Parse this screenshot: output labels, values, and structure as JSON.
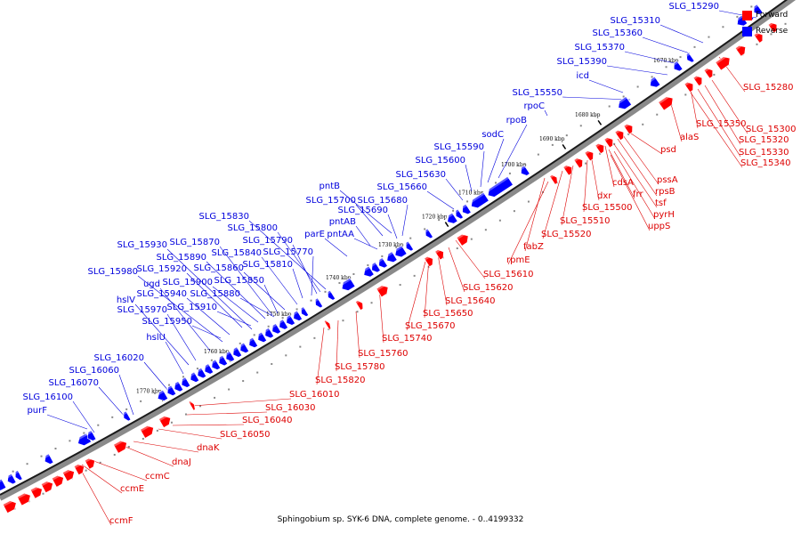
{
  "legend": {
    "forward_label": "Forward",
    "reverse_label": "Reverse",
    "forward_color": "#ff0000",
    "reverse_color": "#0000ff"
  },
  "caption": "Sphingobium sp. SYK-6 DNA, complete genome. - 0..4199332",
  "ticks": [
    "1670 kbp",
    "1680 kbp",
    "1690 kbp",
    "1700 kbp",
    "1710 kbp",
    "1720 kbp",
    "1730 kbp",
    "1740 kbp",
    "1750 kbp",
    "1760 kbp",
    "1770 kbp"
  ],
  "reverse_genes": [
    "SLG_15290",
    "SLG_15310",
    "SLG_15360",
    "SLG_15370",
    "SLG_15390",
    "icd",
    "SLG_15550",
    "rpoC",
    "rpoB",
    "sodC",
    "SLG_15590",
    "SLG_15600",
    "SLG_15630",
    "SLG_15660",
    "pntB",
    "SLG_15700",
    "SLG_15680",
    "SLG_15690",
    "pntAB",
    "parE",
    "pntAA",
    "SLG_15830",
    "SLG_15800",
    "SLG_15790",
    "SLG_15770",
    "SLG_15930",
    "SLG_15870",
    "SLG_15890",
    "SLG_15840",
    "SLG_15980",
    "SLG_15920",
    "SLG_15860",
    "SLG_15810",
    "ugd",
    "SLG_15900",
    "SLG_15850",
    "hslV",
    "SLG_15940",
    "SLG_15880",
    "SLG_15970",
    "SLG_15910",
    "SLG_15950",
    "hslU",
    "SLG_16020",
    "SLG_16060",
    "SLG_16070",
    "SLG_16100",
    "purF"
  ],
  "forward_genes": [
    "SLG_15280",
    "alaS",
    "SLG_15350",
    "SLG_15300",
    "SLG_15320",
    "SLG_15330",
    "SLG_15340",
    "psd",
    "pssA",
    "rpsB",
    "cdsA",
    "tsf",
    "dxr",
    "frr",
    "pyrH",
    "SLG_15500",
    "uppS",
    "SLG_15510",
    "SLG_15520",
    "fabZ",
    "rpmE",
    "SLG_15610",
    "SLG_15620",
    "SLG_15640",
    "SLG_15650",
    "SLG_15670",
    "SLG_15740",
    "SLG_15760",
    "SLG_15780",
    "SLG_15820",
    "SLG_16010",
    "SLG_16030",
    "SLG_16040",
    "SLG_16050",
    "dnaK",
    "dnaJ",
    "ccmC",
    "ccmE",
    "ccmF"
  ]
}
